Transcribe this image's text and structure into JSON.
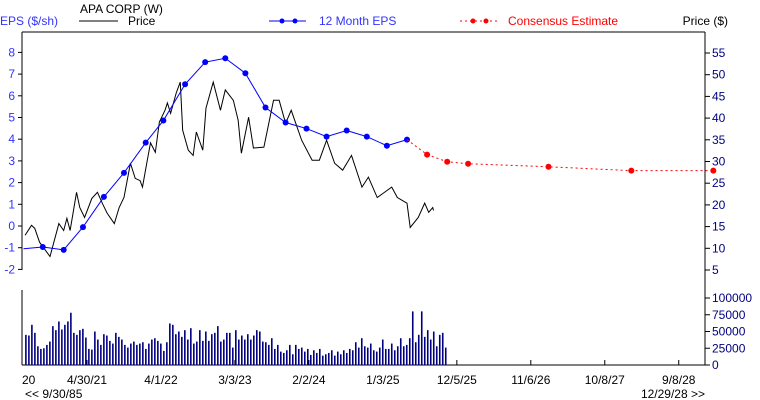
{
  "chart_data": {
    "type": "line",
    "title": "APA CORP (W)",
    "left_axis_label": "EPS ($/sh)",
    "right_axis_label": "Price ($)",
    "legend": {
      "price": "Price",
      "eps": "12 Month EPS",
      "estimate": "Consensus Estimate"
    },
    "colors": {
      "price": "#000000",
      "eps": "#0000ff",
      "estimate": "#ff0000",
      "volume": "#000080",
      "eps_axis": "#3333ff"
    },
    "eps_axis": {
      "ticks": [
        8,
        7,
        6,
        5,
        4,
        3,
        2,
        1,
        0,
        -1,
        -2
      ],
      "range": [
        -2,
        8
      ]
    },
    "price_axis": {
      "ticks": [
        55,
        50,
        45,
        40,
        35,
        30,
        25,
        20,
        15,
        10,
        5
      ],
      "range": [
        5,
        55
      ]
    },
    "volume_axis": {
      "ticks": [
        100000,
        75000,
        50000,
        25000,
        0
      ],
      "range": [
        0,
        100000
      ]
    },
    "x_ticks": [
      {
        "label": "4/30/21",
        "t": 2021.33
      },
      {
        "label": "4/1/22",
        "t": 2022.25
      },
      {
        "label": "3/3/23",
        "t": 2023.17
      },
      {
        "label": "2/2/24",
        "t": 2024.09
      },
      {
        "label": "1/3/25",
        "t": 2025.01
      },
      {
        "label": "12/5/25",
        "t": 2025.93
      },
      {
        "label": "11/6/26",
        "t": 2026.85
      },
      {
        "label": "10/8/27",
        "t": 2027.77
      },
      {
        "label": "9/8/28",
        "t": 2028.69
      }
    ],
    "x_partial_label": "20",
    "range_start": "<< 9/30/85",
    "range_end": "12/29/28 >>",
    "eps": [
      [
        2020.54,
        -1.05,
        false
      ],
      [
        2020.78,
        -0.97,
        true
      ],
      [
        2021.04,
        -1.1,
        true
      ],
      [
        2021.28,
        -0.05,
        true
      ],
      [
        2021.54,
        1.34,
        true
      ],
      [
        2021.79,
        2.45,
        true
      ],
      [
        2022.06,
        3.84,
        true
      ],
      [
        2022.28,
        4.86,
        true
      ],
      [
        2022.55,
        6.53,
        true
      ],
      [
        2022.8,
        7.55,
        true
      ],
      [
        2023.05,
        7.73,
        true
      ],
      [
        2023.3,
        7.04,
        true
      ],
      [
        2023.55,
        5.46,
        true
      ],
      [
        2023.8,
        4.77,
        true
      ],
      [
        2024.06,
        4.49,
        true
      ],
      [
        2024.31,
        4.12,
        true
      ],
      [
        2024.56,
        4.4,
        true
      ],
      [
        2024.81,
        4.12,
        true
      ],
      [
        2025.06,
        3.7,
        true
      ],
      [
        2025.31,
        3.98,
        true
      ]
    ],
    "estimate": [
      [
        2025.31,
        3.98
      ],
      [
        2025.56,
        3.29
      ],
      [
        2025.81,
        2.96
      ],
      [
        2026.07,
        2.87
      ],
      [
        2027.07,
        2.73
      ],
      [
        2028.1,
        2.55
      ],
      [
        2029.12,
        2.55
      ]
    ],
    "price": [
      [
        2020.56,
        13.0
      ],
      [
        2020.64,
        15.3
      ],
      [
        2020.68,
        14.6
      ],
      [
        2020.74,
        11.4
      ],
      [
        2020.87,
        8.1
      ],
      [
        2020.98,
        15.7
      ],
      [
        2021.04,
        14.1
      ],
      [
        2021.08,
        16.9
      ],
      [
        2021.12,
        14.1
      ],
      [
        2021.2,
        22.9
      ],
      [
        2021.24,
        19.4
      ],
      [
        2021.3,
        17.1
      ],
      [
        2021.39,
        21.5
      ],
      [
        2021.46,
        22.9
      ],
      [
        2021.52,
        20.4
      ],
      [
        2021.58,
        18.1
      ],
      [
        2021.67,
        15.7
      ],
      [
        2021.73,
        19.4
      ],
      [
        2021.79,
        21.7
      ],
      [
        2021.87,
        29.6
      ],
      [
        2021.93,
        26.1
      ],
      [
        2021.99,
        25.6
      ],
      [
        2022.02,
        24.1
      ],
      [
        2022.08,
        30.3
      ],
      [
        2022.12,
        34.3
      ],
      [
        2022.18,
        32.1
      ],
      [
        2022.23,
        39.1
      ],
      [
        2022.3,
        41.8
      ],
      [
        2022.33,
        43.5
      ],
      [
        2022.37,
        41.1
      ],
      [
        2022.44,
        45.8
      ],
      [
        2022.49,
        48.3
      ],
      [
        2022.52,
        37.2
      ],
      [
        2022.59,
        32.6
      ],
      [
        2022.65,
        31.4
      ],
      [
        2022.69,
        36.8
      ],
      [
        2022.77,
        32.6
      ],
      [
        2022.81,
        42.3
      ],
      [
        2022.9,
        48.3
      ],
      [
        2022.99,
        41.8
      ],
      [
        2023.05,
        46.5
      ],
      [
        2023.15,
        44.1
      ],
      [
        2023.21,
        39.5
      ],
      [
        2023.25,
        31.9
      ],
      [
        2023.34,
        40.2
      ],
      [
        2023.4,
        33.1
      ],
      [
        2023.53,
        33.3
      ],
      [
        2023.65,
        44.1
      ],
      [
        2023.72,
        44.1
      ],
      [
        2023.8,
        38.8
      ],
      [
        2023.87,
        41.8
      ],
      [
        2024.0,
        34.9
      ],
      [
        2024.13,
        30.3
      ],
      [
        2024.22,
        30.3
      ],
      [
        2024.31,
        34.9
      ],
      [
        2024.41,
        29.6
      ],
      [
        2024.51,
        28.0
      ],
      [
        2024.62,
        31.4
      ],
      [
        2024.75,
        24.1
      ],
      [
        2024.83,
        26.4
      ],
      [
        2024.94,
        21.7
      ],
      [
        2025.12,
        24.1
      ],
      [
        2025.19,
        21.7
      ],
      [
        2025.31,
        20.4
      ],
      [
        2025.35,
        14.8
      ],
      [
        2025.45,
        17.1
      ],
      [
        2025.53,
        20.4
      ],
      [
        2025.58,
        18.3
      ],
      [
        2025.63,
        19.4
      ],
      [
        2025.64,
        18.7
      ]
    ],
    "volume_start": 2020.56,
    "volume_step_years": 0.0373,
    "volume": [
      45000,
      44000,
      60000,
      48000,
      28000,
      24000,
      25000,
      30000,
      35000,
      58000,
      52000,
      65000,
      53000,
      60000,
      65000,
      78000,
      48000,
      45000,
      52000,
      54000,
      41000,
      24000,
      23000,
      50000,
      38000,
      30000,
      46000,
      44000,
      36000,
      32000,
      48000,
      42000,
      38000,
      30000,
      26000,
      32000,
      35000,
      30000,
      32000,
      34000,
      24000,
      32000,
      38000,
      40000,
      36000,
      32000,
      21000,
      34000,
      62000,
      60000,
      46000,
      50000,
      42000,
      52000,
      38000,
      55000,
      32000,
      35000,
      52000,
      36000,
      50000,
      36000,
      46000,
      48000,
      58000,
      35000,
      38000,
      48000,
      48000,
      26000,
      52000,
      38000,
      44000,
      38000,
      46000,
      38000,
      44000,
      52000,
      50000,
      35000,
      34000,
      30000,
      40000,
      24000,
      30000,
      20000,
      18000,
      22000,
      30000,
      16000,
      30000,
      24000,
      26000,
      20000,
      24000,
      15000,
      22000,
      18000,
      24000,
      14000,
      16000,
      18000,
      22000,
      14000,
      20000,
      16000,
      22000,
      18000,
      24000,
      22000,
      34000,
      26000,
      40000,
      28000,
      26000,
      32000,
      22000,
      20000,
      26000,
      38000,
      24000,
      24000,
      32000,
      22000,
      28000,
      40000,
      28000,
      30000,
      40000,
      80000,
      34000,
      45000,
      80000,
      42000,
      52000,
      38000,
      50000,
      28000,
      45000,
      48000,
      26000
    ]
  }
}
